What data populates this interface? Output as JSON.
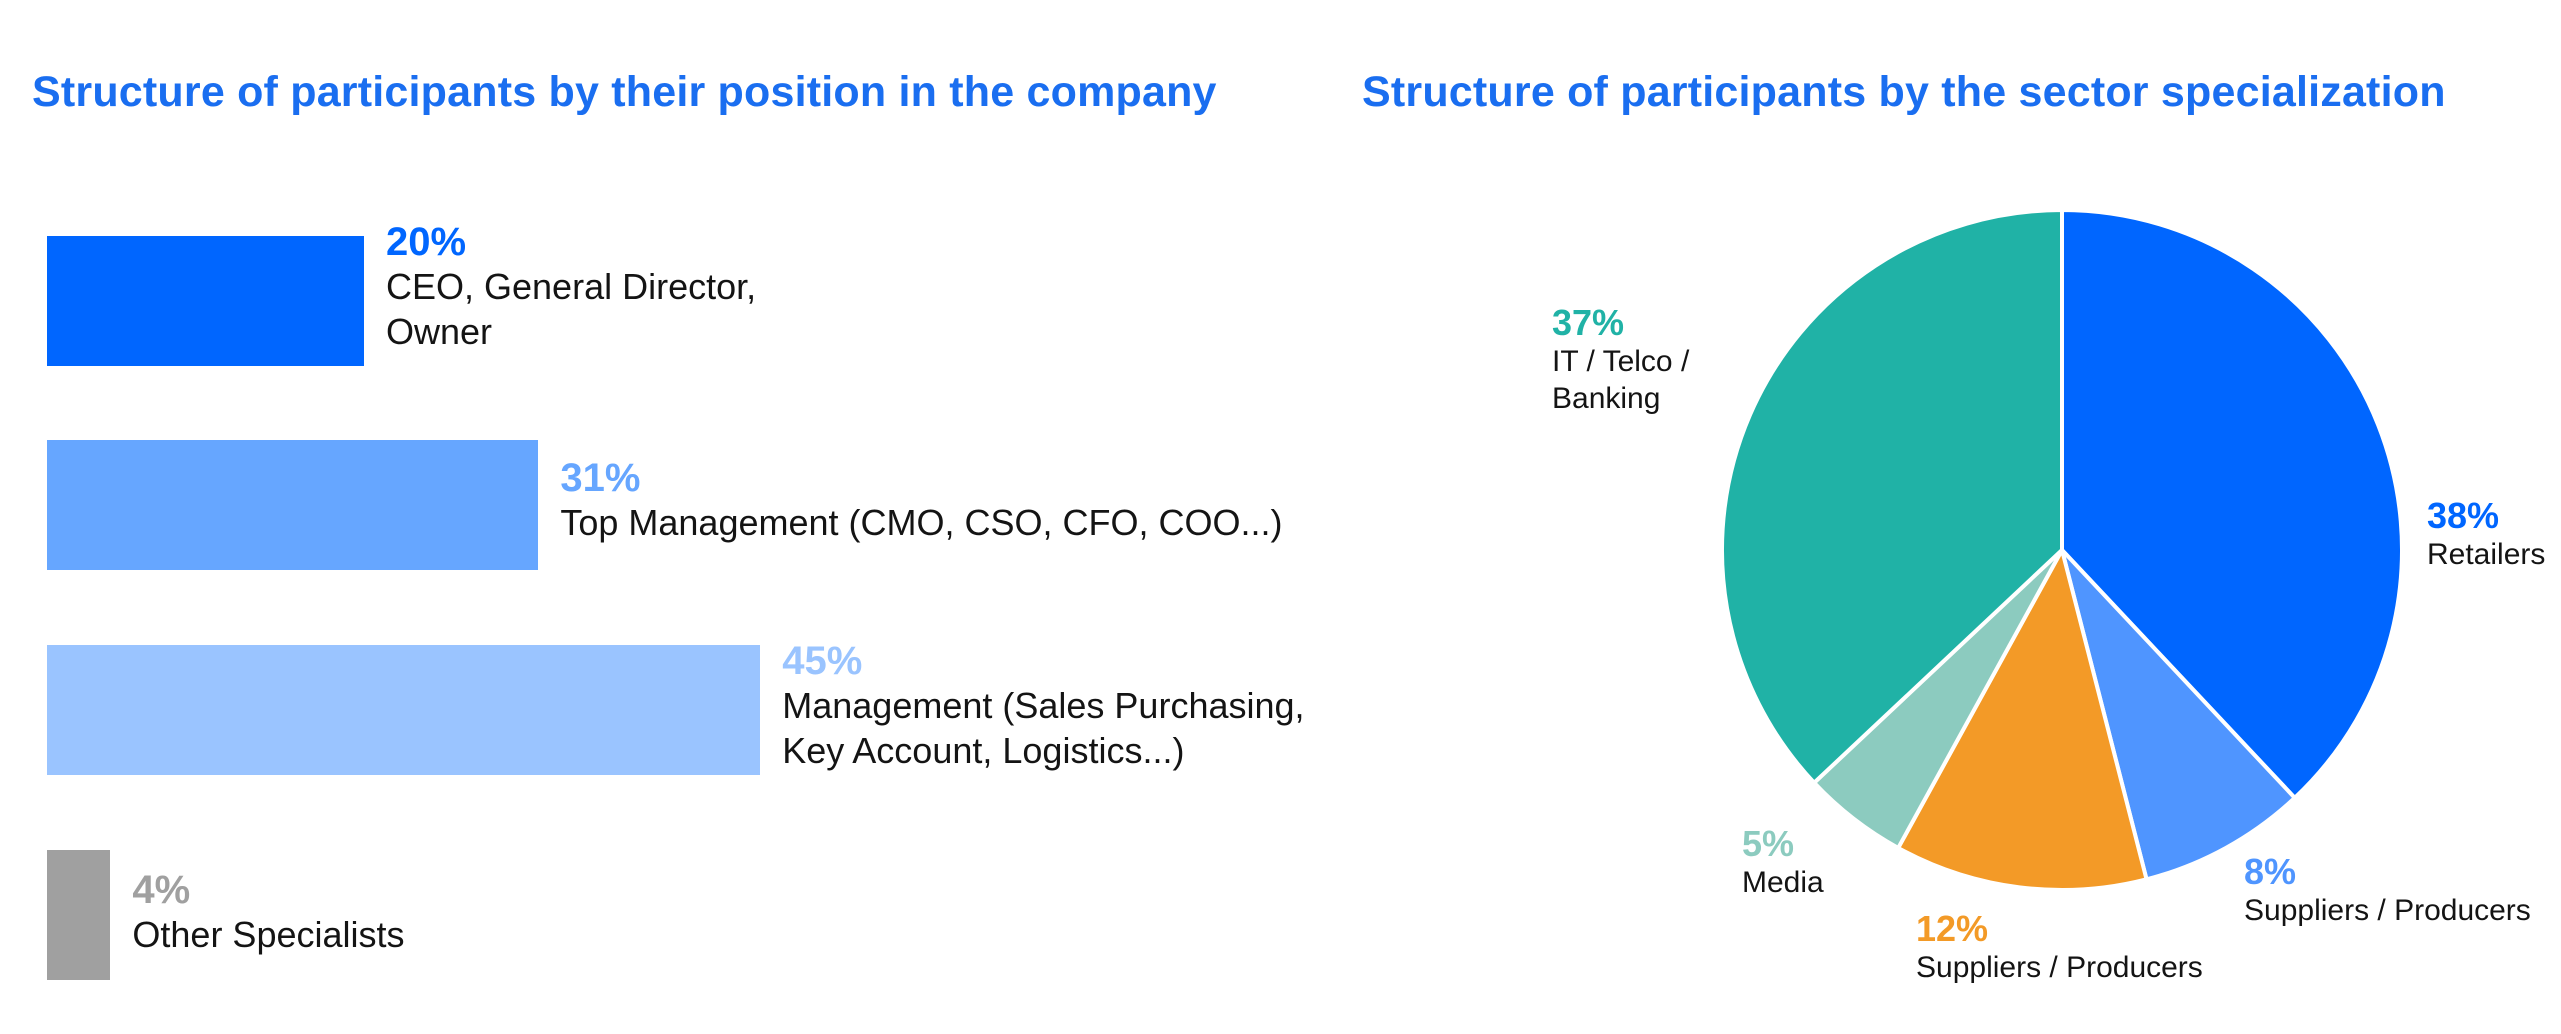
{
  "chart_data": [
    {
      "type": "bar",
      "orientation": "horizontal",
      "title": "Structure of participants by their position in the company",
      "categories": [
        "CEO, General Director,\nOwner",
        "Top Management (CMO, CSO, CFO, COO...)",
        "Management (Sales Purchasing,\nKey Account, Logistics...)",
        "Other Specialists"
      ],
      "values": [
        20,
        31,
        45,
        4
      ],
      "value_labels": [
        "20%",
        "31%",
        "45%",
        "4%"
      ],
      "colors": [
        "#0066ff",
        "#66a6ff",
        "#9ac4ff",
        "#a0a0a0"
      ],
      "unit": "%",
      "xlabel": "",
      "ylabel": "",
      "grid": false
    },
    {
      "type": "pie",
      "title": "Structure of participants by the sector specialization",
      "categories": [
        "Retailers",
        "Suppliers / Producers",
        "Suppliers / Producers",
        "Media",
        "IT / Telco /\nBanking"
      ],
      "values": [
        38,
        8,
        12,
        5,
        37
      ],
      "value_labels": [
        "38%",
        "8%",
        "12%",
        "5%",
        "37%"
      ],
      "colors": [
        "#0066ff",
        "#4f95ff",
        "#f39a27",
        "#8ccbbf",
        "#20b2a6"
      ],
      "unit": "%",
      "start": "12 o'clock",
      "direction": "clockwise"
    }
  ]
}
